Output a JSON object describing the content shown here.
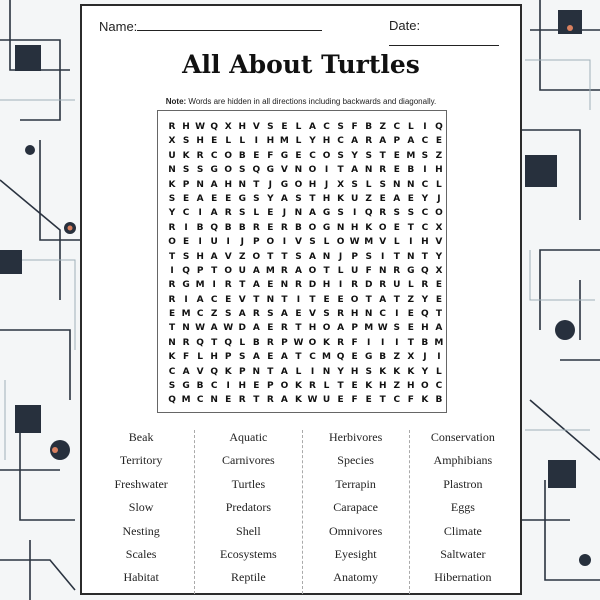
{
  "header": {
    "name_label": "Name:",
    "date_label": "Date:"
  },
  "title": "All About Turtles",
  "note": {
    "bold": "Note:",
    "text": " Words are hidden in all directions including backwards and diagonally."
  },
  "grid": [
    "RHWQXHVSELACSFBZCLIQ",
    "XSHELLIHMLYHCARAPACE",
    "UKRCOBEFGECOSYSTEMSZ",
    "NSSGOSQGVNOITANREBIH",
    "KPNAHNTJGOHJXSLSNNCL",
    "SEAEEGSYASTHKUZEAEYJ",
    "YCIARSLEJNAGSIQRSSCO",
    "RIBQBBRERBOGNHKOETCX",
    "OEIUIJPOIVSLOWMVLIHV",
    "TSHAVZOTTSANJPSITNTY",
    "IQPTOUAMRAOTLUFNRGQX",
    "RGMIRTAENRDHIRDRULRE",
    "RIACEVTNTITEEOTATZYE",
    "EMCZSARSAEVSRHNCIEQT",
    "TNWAWDAERTHOAPMWSEHA",
    "NRQTQLBRPWOKRFIIITBM",
    "KFLHPSAEATCMQEGBZXJI",
    "CAVQKPNTALINYHSKKKYL",
    "SGBCIHEPOKRLTEKHZHOC",
    "QMCNERTRAKWUEFETCFKB"
  ],
  "word_columns": [
    [
      "Beak",
      "Territory",
      "Freshwater",
      "Slow",
      "Nesting",
      "Scales",
      "Habitat"
    ],
    [
      "Aquatic",
      "Carnivores",
      "Turtles",
      "Predators",
      "Shell",
      "Ecosystems",
      "Reptile"
    ],
    [
      "Herbivores",
      "Species",
      "Terrapin",
      "Carapace",
      "Omnivores",
      "Eyesight",
      "Anatomy"
    ],
    [
      "Conservation",
      "Amphibians",
      "Plastron",
      "Eggs",
      "Climate",
      "Saltwater",
      "Hibernation"
    ]
  ],
  "colors": {
    "background_accent": "#27303d",
    "accent_orange": "#d9805f"
  }
}
